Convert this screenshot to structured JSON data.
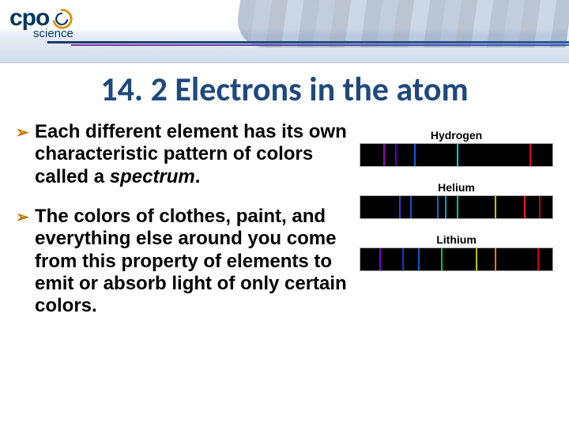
{
  "logo": {
    "cpo": "cpo",
    "science": "science",
    "swirl_outer_color": "#d89000",
    "swirl_inner_color": "#00365f"
  },
  "title": "14. 2 Electrons in the atom",
  "title_color": "#1f497d",
  "bullet_arrow_color": "#c07800",
  "bullets": [
    {
      "text_pre": "Each different element has its own characteristic pattern of colors called a ",
      "emph": "spectrum",
      "text_post": "."
    },
    {
      "text_pre": "The colors of clothes, paint, and everything else around you come from this property of elements to emit or absorb light of only certain colors.",
      "emph": "",
      "text_post": ""
    }
  ],
  "spectra": [
    {
      "label": "Hydrogen",
      "background": "#000000",
      "lines": [
        {
          "pos": 12,
          "color": "#9a00c0"
        },
        {
          "pos": 18,
          "color": "#5a00b0"
        },
        {
          "pos": 28,
          "color": "#0060e0"
        },
        {
          "pos": 50,
          "color": "#00d0d0"
        },
        {
          "pos": 88,
          "color": "#e00020"
        }
      ]
    },
    {
      "label": "Helium",
      "background": "#000000",
      "lines": [
        {
          "pos": 20,
          "color": "#3040d0"
        },
        {
          "pos": 26,
          "color": "#2050d0"
        },
        {
          "pos": 40,
          "color": "#0070c0"
        },
        {
          "pos": 44,
          "color": "#00a0c0"
        },
        {
          "pos": 50,
          "color": "#00c090"
        },
        {
          "pos": 70,
          "color": "#d0c000"
        },
        {
          "pos": 85,
          "color": "#ff2000"
        },
        {
          "pos": 93,
          "color": "#c00010"
        }
      ]
    },
    {
      "label": "Lithium",
      "background": "#000000",
      "lines": [
        {
          "pos": 10,
          "color": "#8000c0"
        },
        {
          "pos": 22,
          "color": "#2030d0"
        },
        {
          "pos": 30,
          "color": "#0060d0"
        },
        {
          "pos": 42,
          "color": "#00c070"
        },
        {
          "pos": 60,
          "color": "#c0c000"
        },
        {
          "pos": 70,
          "color": "#ff8000"
        },
        {
          "pos": 92,
          "color": "#d00010"
        }
      ]
    }
  ]
}
